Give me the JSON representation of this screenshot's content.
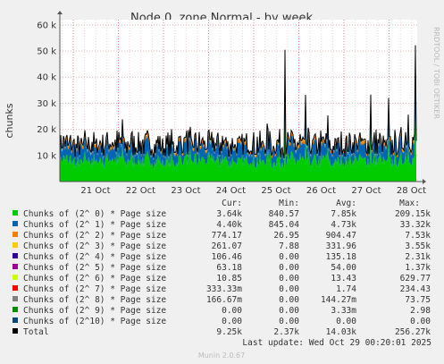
{
  "chart_data": {
    "type": "area",
    "title": "Node 0, zone Normal - by week",
    "ylabel": "chunks",
    "side_text": "RRDTOOL / TOBI OETIKER",
    "x_ticks": [
      "21 Oct",
      "22 Oct",
      "23 Oct",
      "24 Oct",
      "25 Oct",
      "26 Oct",
      "27 Oct",
      "28 Oct"
    ],
    "y_ticks": [
      "10 k",
      "20 k",
      "30 k",
      "40 k",
      "50 k",
      "60 k"
    ],
    "y_tick_values": [
      10000,
      20000,
      30000,
      40000,
      50000,
      60000
    ],
    "ylim": [
      0,
      62000
    ],
    "grid": true,
    "legend_placement": "bottom",
    "headers": [
      "Cur:",
      "Min:",
      "Avg:",
      "Max:"
    ],
    "series": [
      {
        "name": "Chunks of (2^ 0) * Page size",
        "color": "#00cc00",
        "cur": "3.64k",
        "min": "840.57",
        "avg": "7.85k",
        "max": "209.15k"
      },
      {
        "name": "Chunks of (2^ 1) * Page size",
        "color": "#0066b3",
        "cur": "4.40k",
        "min": "845.04",
        "avg": "4.73k",
        "max": "33.32k"
      },
      {
        "name": "Chunks of (2^ 2) * Page size",
        "color": "#ff8000",
        "cur": "774.17",
        "min": "26.95",
        "avg": "904.47",
        "max": "7.53k"
      },
      {
        "name": "Chunks of (2^ 3) * Page size",
        "color": "#ffcc00",
        "cur": "261.07",
        "min": "7.88",
        "avg": "331.96",
        "max": "3.55k"
      },
      {
        "name": "Chunks of (2^ 4) * Page size",
        "color": "#330099",
        "cur": "106.46",
        "min": "0.00",
        "avg": "135.18",
        "max": "2.31k"
      },
      {
        "name": "Chunks of (2^ 5) * Page size",
        "color": "#990099",
        "cur": "63.18",
        "min": "0.00",
        "avg": "54.00",
        "max": "1.37k"
      },
      {
        "name": "Chunks of (2^ 6) * Page size",
        "color": "#ccff00",
        "cur": "10.85",
        "min": "0.00",
        "avg": "13.43",
        "max": "629.77"
      },
      {
        "name": "Chunks of (2^ 7) * Page size",
        "color": "#ff0000",
        "cur": "333.33m",
        "min": "0.00",
        "avg": "1.74",
        "max": "234.43"
      },
      {
        "name": "Chunks of (2^ 8) * Page size",
        "color": "#808080",
        "cur": "166.67m",
        "min": "0.00",
        "avg": "144.27m",
        "max": "73.75"
      },
      {
        "name": "Chunks of (2^ 9) * Page size",
        "color": "#008f00",
        "cur": "0.00",
        "min": "0.00",
        "avg": "3.33m",
        "max": "2.98"
      },
      {
        "name": "Chunks of (2^10) * Page size",
        "color": "#00487d",
        "cur": "0.00",
        "min": "0.00",
        "avg": "0.00",
        "max": "0.00"
      },
      {
        "name": "Total",
        "color": "#000000",
        "cur": "9.25k",
        "min": "2.37k",
        "avg": "14.03k",
        "max": "256.27k"
      }
    ],
    "last_update": "Last update: Wed Oct 29 00:20:01 2025",
    "footer": "Munin 2.0.67"
  }
}
